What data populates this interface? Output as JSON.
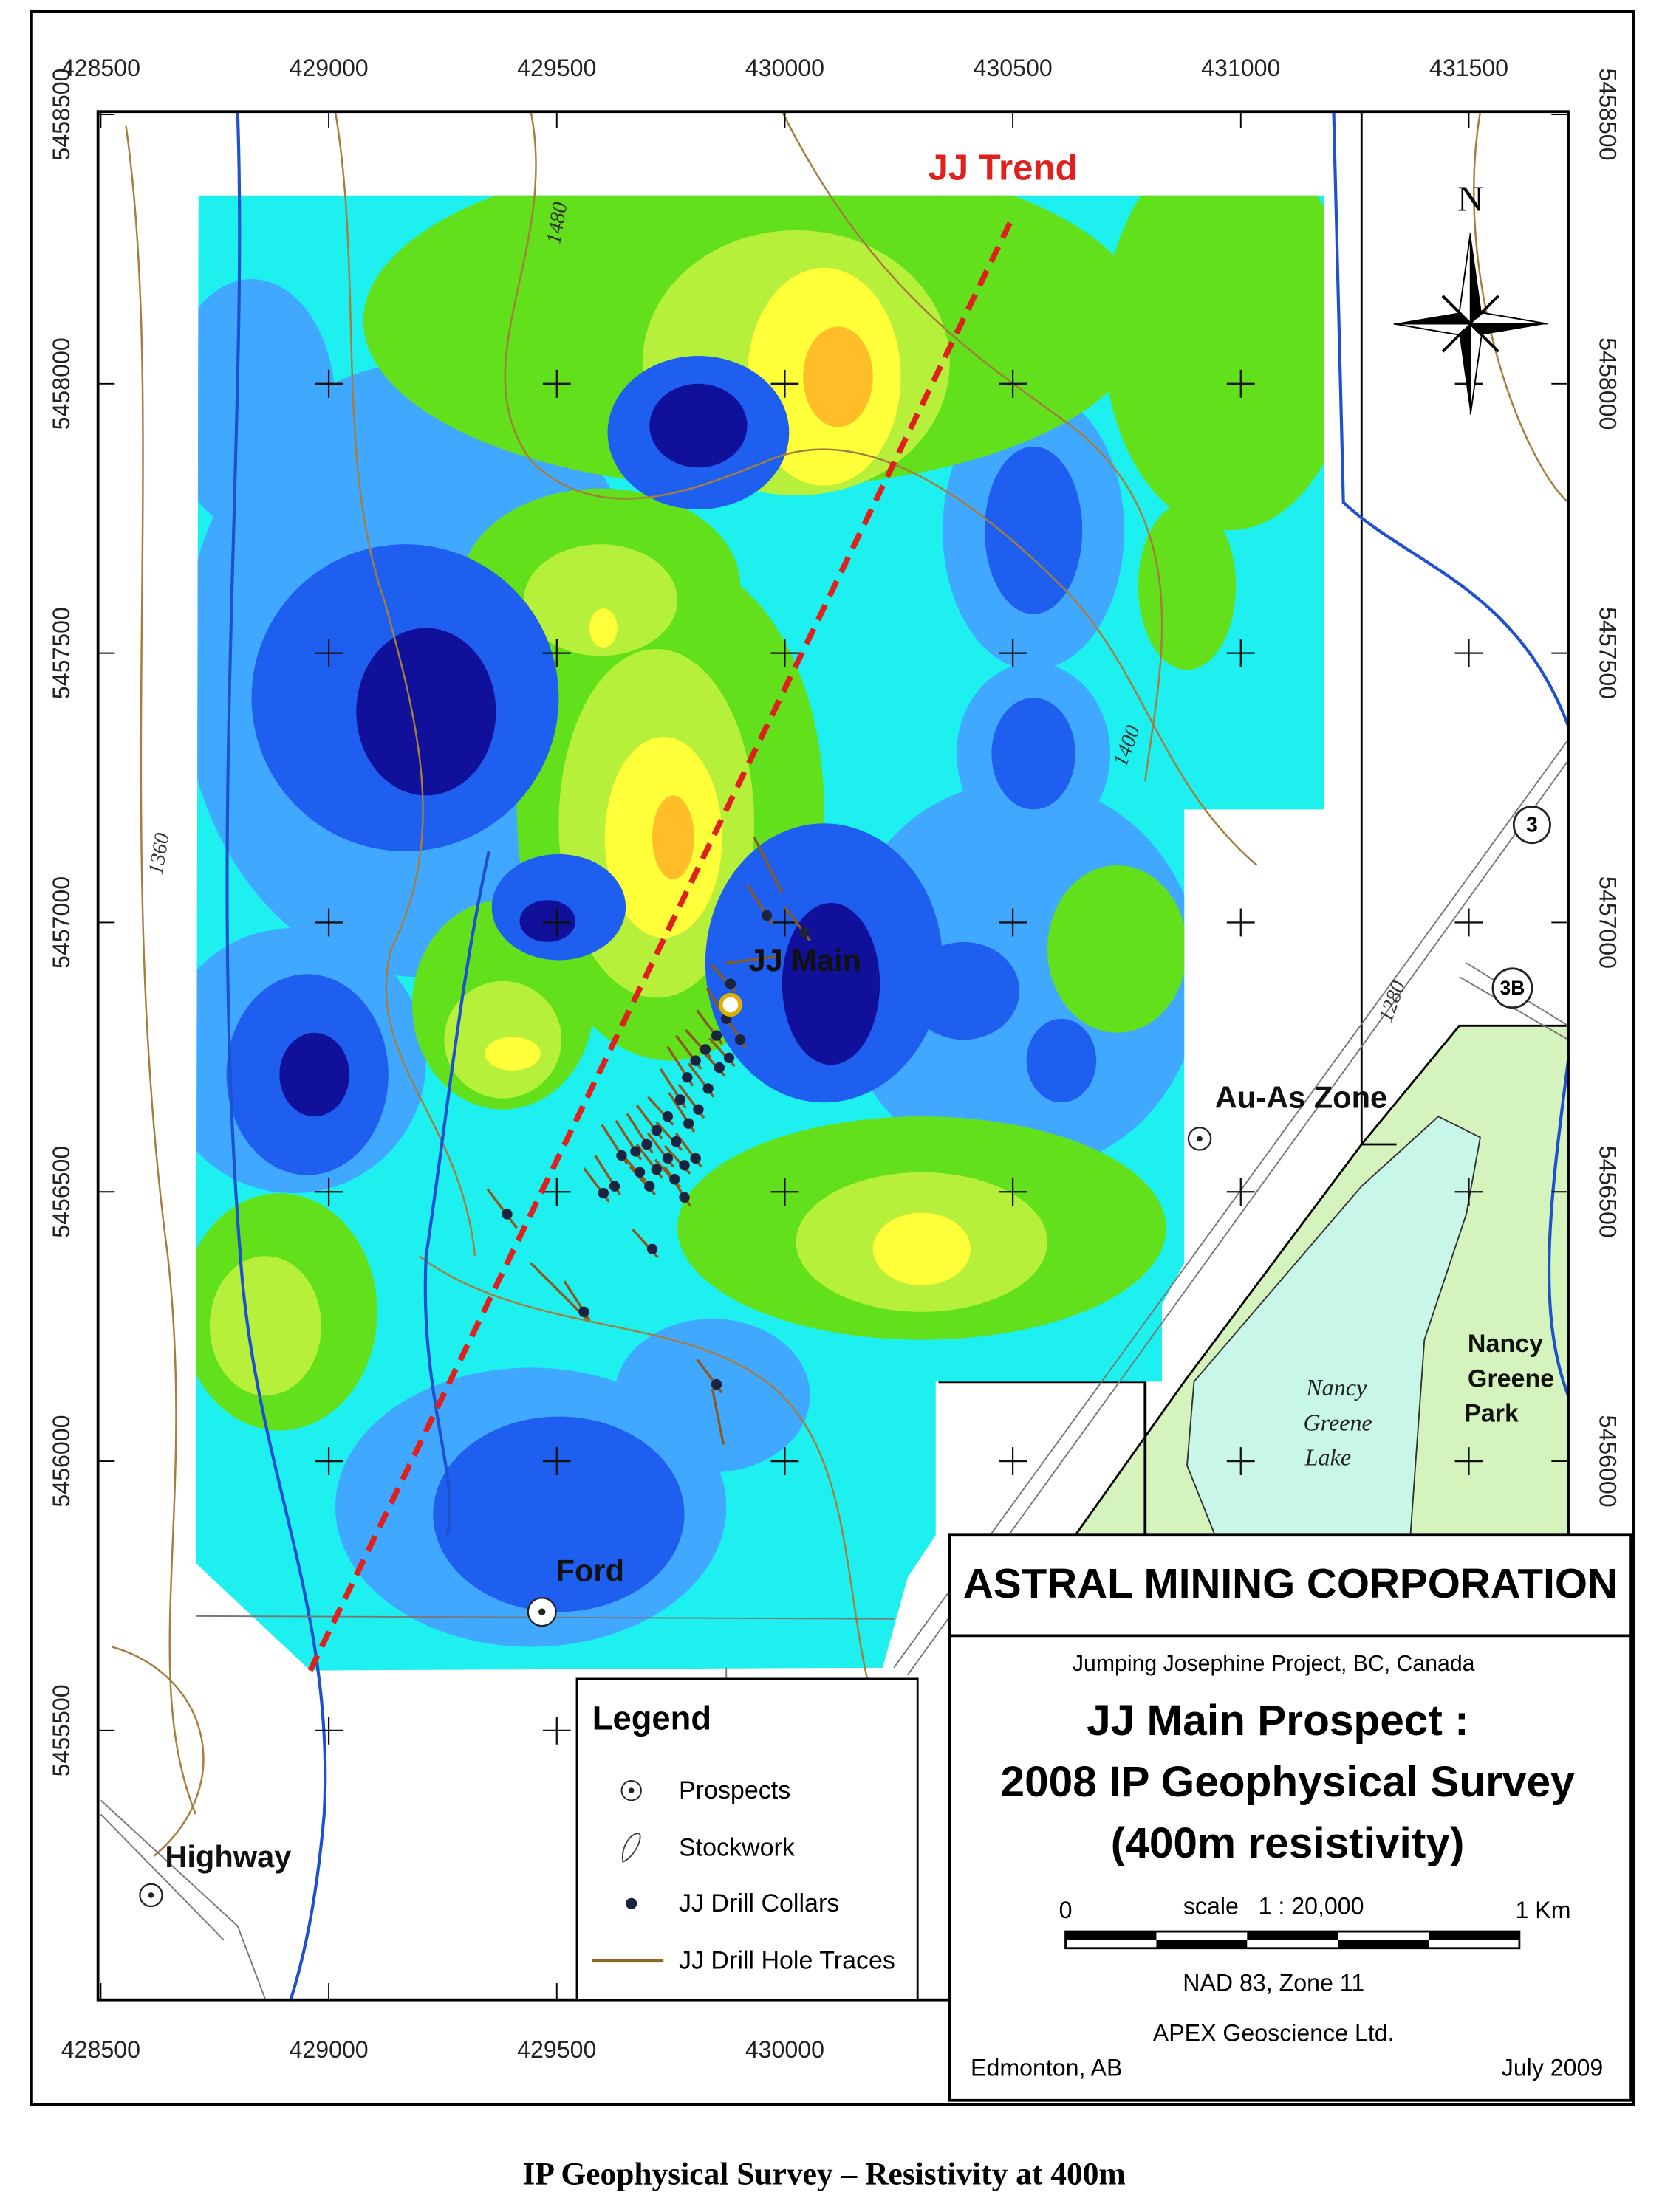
{
  "map": {
    "eastings": [
      428500,
      429000,
      429500,
      430000,
      430500,
      431000,
      431500
    ],
    "northings": [
      5458500,
      5458000,
      5457500,
      5457000,
      5456500,
      5456000,
      5455500
    ],
    "contours": [
      1480,
      1400,
      1360,
      1280
    ],
    "trend": "JJ Trend",
    "north": "N",
    "road_shields": [
      "3",
      "3B"
    ],
    "places": {
      "jj_main": "JJ Main",
      "au_as": "Au-As Zone",
      "ford": "Ford",
      "highway": "Highway"
    },
    "lake": [
      "Nancy",
      "Greene",
      "Lake"
    ],
    "park": [
      "Nancy",
      "Greene",
      "Park"
    ]
  },
  "legend": {
    "title": "Legend",
    "items": [
      "Prospects",
      "Stockwork",
      "JJ Drill Collars",
      "JJ Drill Hole Traces"
    ]
  },
  "title_block": {
    "company": "ASTRAL MINING CORPORATION",
    "project": "Jumping Josephine Project, BC, Canada",
    "title": [
      "JJ Main Prospect :",
      "2008 IP Geophysical Survey",
      "(400m resistivity)"
    ],
    "scale": {
      "start": "0",
      "label": "scale   1 : 20,000",
      "end": "1 Km"
    },
    "datum": "NAD 83, Zone 11",
    "author": "APEX Geoscience Ltd.",
    "place": "Edmonton, AB",
    "date": "July 2009"
  },
  "caption": "IP Geophysical Survey – Resistivity at 400m"
}
